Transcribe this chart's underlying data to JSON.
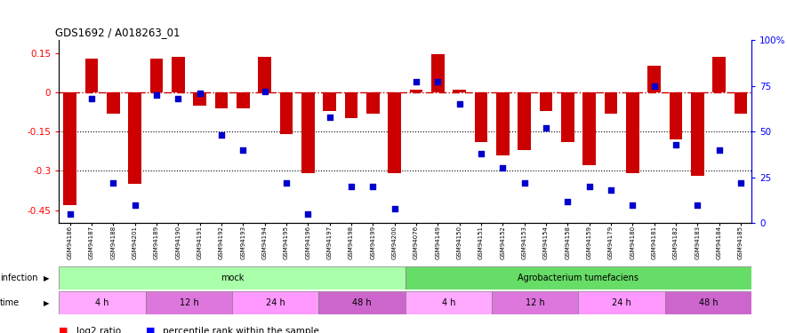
{
  "title": "GDS1692 / A018263_01",
  "x_labels": [
    "GSM94186",
    "GSM94187",
    "GSM94188",
    "GSM94201",
    "GSM94189",
    "GSM94190",
    "GSM94191",
    "GSM94192",
    "GSM94193",
    "GSM94194",
    "GSM94195",
    "GSM94196",
    "GSM94197",
    "GSM94198",
    "GSM94199",
    "GSM94200",
    "GSM94076",
    "GSM94149",
    "GSM94150",
    "GSM94151",
    "GSM94152",
    "GSM94153",
    "GSM94154",
    "GSM94158",
    "GSM94159",
    "GSM94179",
    "GSM94180",
    "GSM94181",
    "GSM94182",
    "GSM94183",
    "GSM94184",
    "GSM94185"
  ],
  "log2_ratio": [
    -0.43,
    0.13,
    -0.08,
    -0.35,
    0.13,
    0.135,
    -0.05,
    -0.06,
    -0.06,
    0.135,
    -0.16,
    -0.31,
    -0.07,
    -0.1,
    -0.08,
    -0.31,
    0.01,
    0.145,
    0.01,
    -0.19,
    -0.24,
    -0.22,
    -0.07,
    -0.19,
    -0.28,
    -0.08,
    -0.31,
    0.1,
    -0.18,
    -0.32,
    0.135,
    -0.08
  ],
  "percentile_rank": [
    5,
    68,
    22,
    10,
    70,
    68,
    71,
    48,
    40,
    72,
    22,
    5,
    58,
    20,
    20,
    8,
    77,
    77,
    65,
    38,
    30,
    22,
    52,
    12,
    20,
    18,
    10,
    75,
    43,
    10,
    40,
    22
  ],
  "infection_groups": [
    {
      "label": "mock",
      "start": 0,
      "end": 16,
      "color": "#aaffaa"
    },
    {
      "label": "Agrobacterium tumefaciens",
      "start": 16,
      "end": 32,
      "color": "#66dd66"
    }
  ],
  "time_groups": [
    {
      "label": "4 h",
      "start": 0,
      "end": 4,
      "color": "#ffaaff"
    },
    {
      "label": "12 h",
      "start": 4,
      "end": 8,
      "color": "#dd77dd"
    },
    {
      "label": "24 h",
      "start": 8,
      "end": 12,
      "color": "#ff99ff"
    },
    {
      "label": "48 h",
      "start": 12,
      "end": 16,
      "color": "#cc66cc"
    },
    {
      "label": "4 h",
      "start": 16,
      "end": 20,
      "color": "#ffaaff"
    },
    {
      "label": "12 h",
      "start": 20,
      "end": 24,
      "color": "#dd77dd"
    },
    {
      "label": "24 h",
      "start": 24,
      "end": 28,
      "color": "#ff99ff"
    },
    {
      "label": "48 h",
      "start": 28,
      "end": 32,
      "color": "#cc66cc"
    }
  ],
  "ylim_left": [
    -0.5,
    0.2
  ],
  "ylim_right": [
    0,
    100
  ],
  "yticks_left": [
    0.15,
    0.0,
    -0.15,
    -0.3,
    -0.45
  ],
  "yticks_right": [
    100,
    75,
    50,
    25,
    0
  ],
  "bar_color": "#cc0000",
  "dot_color": "#0000cc",
  "zero_line_color": "#cc0000",
  "background_color": "#ffffff"
}
